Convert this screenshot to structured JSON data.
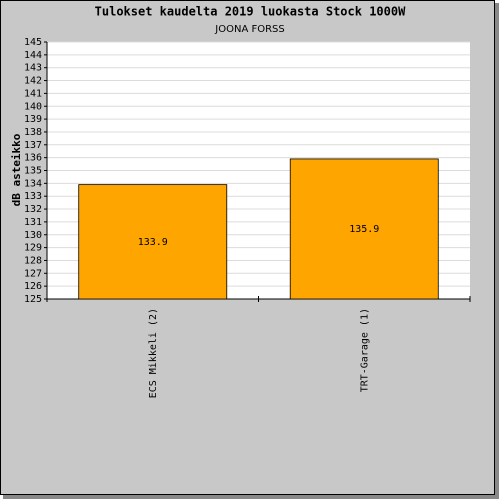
{
  "chart_data": {
    "type": "bar",
    "title": "Tulokset kaudelta 2019 luokasta Stock 1000W",
    "subtitle": "JOONA FORSS",
    "y_label": "dB asteikko",
    "categories": [
      "ECS Mikkeli (2)",
      "TRT-Garage (1)"
    ],
    "values": [
      133.9,
      135.9
    ],
    "color": "#ffa500",
    "ylim": [
      125,
      145
    ],
    "yticks": [
      125,
      126,
      127,
      128,
      129,
      130,
      131,
      132,
      133,
      134,
      135,
      136,
      137,
      138,
      139,
      140,
      141,
      142,
      143,
      144,
      145
    ],
    "grid": true,
    "show_value_labels": true
  }
}
